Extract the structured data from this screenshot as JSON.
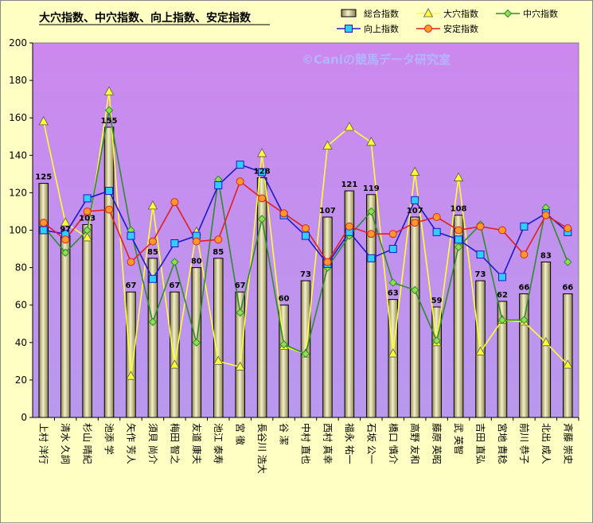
{
  "chart_data": {
    "type": "bar",
    "title": "大穴指数、中穴指数、向上指数、安定指数",
    "watermark": "©Caniの競馬データ研究室",
    "ylim": [
      0,
      200
    ],
    "yticks": [
      0,
      20,
      40,
      60,
      80,
      100,
      120,
      140,
      160,
      180,
      200
    ],
    "grid": false,
    "legend_position": "top-right",
    "categories": [
      "上村 洋行",
      "清水 久詞",
      "杉山 晴紀",
      "池添 学",
      "矢作 芳人",
      "須貝 尚介",
      "梅田 智之",
      "友道 康夫",
      "池江 泰寿",
      "宮 徹",
      "長谷川 浩大",
      "谷 潔",
      "中村 直也",
      "西村 真幸",
      "福永 祐一",
      "石坂 公一",
      "橋口 慎介",
      "高野 友和",
      "藤原 英昭",
      "武 英智",
      "吉田 直弘",
      "宮地 貴稔",
      "前川 恭子",
      "北出 成人",
      "斉藤 崇史"
    ],
    "series": [
      {
        "name": "総合指数",
        "kind": "bar",
        "color": "#d8d29a",
        "values": [
          125,
          97,
          103,
          155,
          67,
          85,
          67,
          80,
          85,
          67,
          128,
          60,
          73,
          107,
          121,
          119,
          63,
          107,
          59,
          108,
          73,
          62,
          66,
          83,
          66
        ],
        "labels": [
          "125",
          "97",
          "103",
          "155",
          "67",
          "85",
          "67",
          "80",
          "85",
          "67",
          "128",
          "60",
          "73",
          "107",
          "121",
          "119",
          "63",
          "107",
          "59",
          "108",
          "73",
          "62",
          "66",
          "83",
          "66"
        ]
      },
      {
        "name": "大穴指数",
        "kind": "line",
        "marker": "triangle",
        "color": "#ffff33",
        "values": [
          158,
          104,
          96,
          174,
          22,
          113,
          28,
          99,
          30,
          27,
          141,
          38,
          34,
          145,
          155,
          147,
          34,
          131,
          40,
          128,
          35,
          52,
          51,
          40,
          28
        ]
      },
      {
        "name": "中穴指数",
        "kind": "line",
        "marker": "diamond",
        "color": "#2e8b2e",
        "values": [
          102,
          88,
          100,
          164,
          100,
          51,
          83,
          40,
          127,
          56,
          106,
          39,
          34,
          80,
          97,
          110,
          72,
          68,
          41,
          91,
          103,
          52,
          52,
          112,
          83
        ]
      },
      {
        "name": "向上指数",
        "kind": "line",
        "marker": "square",
        "color": "#1a1acc",
        "values": [
          100,
          98,
          117,
          121,
          97,
          74,
          93,
          97,
          124,
          135,
          131,
          108,
          97,
          82,
          99,
          85,
          90,
          116,
          99,
          95,
          87,
          75,
          102,
          109,
          99
        ]
      },
      {
        "name": "安定指数",
        "kind": "line",
        "marker": "circle",
        "color": "#e02020",
        "values": [
          104,
          95,
          110,
          111,
          83,
          94,
          115,
          94,
          95,
          126,
          117,
          109,
          101,
          83,
          102,
          98,
          98,
          104,
          107,
          100,
          102,
          100,
          87,
          108,
          101
        ]
      }
    ]
  }
}
